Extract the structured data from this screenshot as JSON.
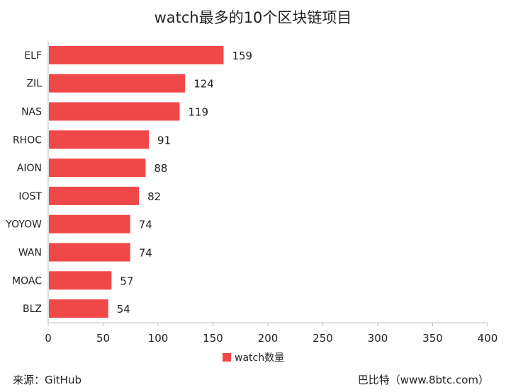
{
  "chart_data": {
    "type": "bar",
    "orientation": "horizontal",
    "title": "watch最多的10个区块链项目",
    "categories": [
      "ELF",
      "ZIL",
      "NAS",
      "RHOC",
      "AION",
      "IOST",
      "YOYOW",
      "WAN",
      "MOAC",
      "BLZ"
    ],
    "series": [
      {
        "name": "watch数量",
        "values": [
          159,
          124,
          119,
          91,
          88,
          82,
          74,
          74,
          57,
          54
        ],
        "color": "#f04848"
      }
    ],
    "xlim": [
      0,
      400
    ],
    "xticks": [
      0,
      50,
      100,
      150,
      200,
      250,
      300,
      350,
      400
    ],
    "grid": false,
    "legend": "bottom",
    "data_labels": true
  },
  "footer": {
    "source": "来源：GitHub",
    "credit": "巴比特（www.8btc.com）"
  }
}
